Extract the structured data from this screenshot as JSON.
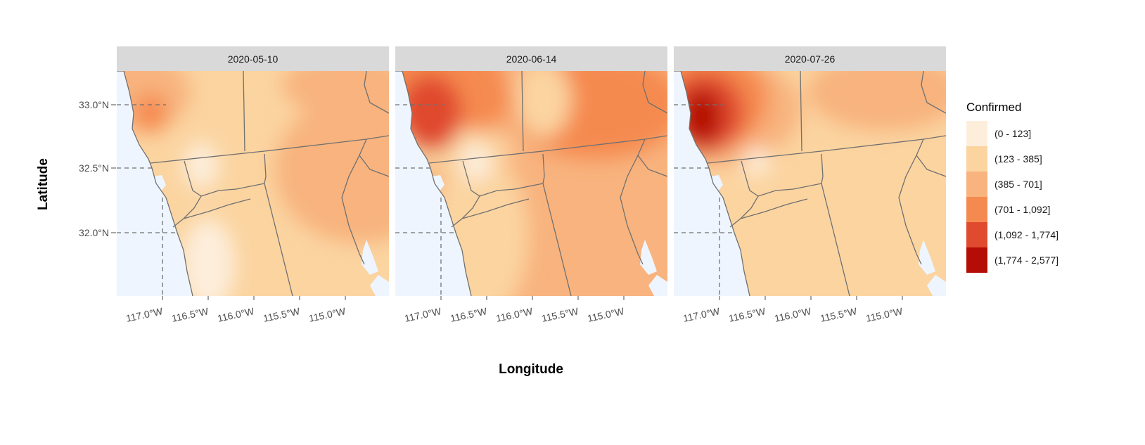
{
  "map": {
    "x_axis_title": "Longitude",
    "y_axis_title": "Latitude",
    "x_ticks": [
      "117.0°W",
      "116.5°W",
      "116.0°W",
      "115.5°W",
      "115.0°W"
    ],
    "y_ticks": [
      "33.0°N",
      "32.5°N",
      "32.0°N"
    ],
    "legend": {
      "title": "Confirmed",
      "items": [
        {
          "label": "(0 - 123]",
          "color": "#fdeedc"
        },
        {
          "label": "(123 - 385]",
          "color": "#fbd4a0"
        },
        {
          "label": "(385 - 701]",
          "color": "#f8b37e"
        },
        {
          "label": "(701 - 1,092]",
          "color": "#f58a50"
        },
        {
          "label": "(1,092 - 1,774]",
          "color": "#e04a2f"
        },
        {
          "label": "(1,774 - 2,577]",
          "color": "#b40c06"
        }
      ]
    },
    "panels": [
      {
        "date": "2020-05-10"
      },
      {
        "date": "2020-06-14"
      },
      {
        "date": "2020-07-26"
      }
    ],
    "colors": {
      "water": "#eef5fe",
      "strip_bg": "#d9d9d9",
      "boundary": "#707070",
      "gridline": "#707070"
    }
  }
}
